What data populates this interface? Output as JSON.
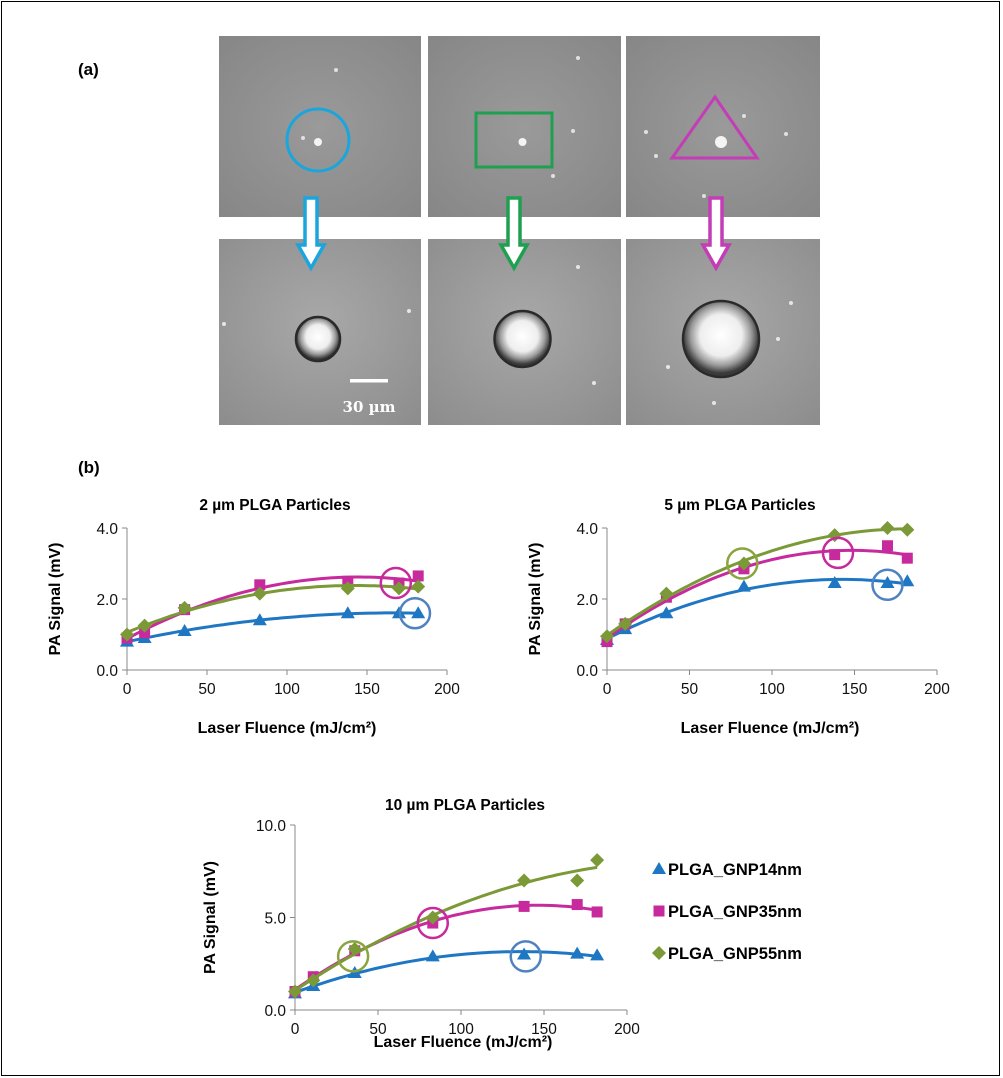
{
  "panel_labels": {
    "a": "(a)",
    "b": "(b)"
  },
  "scale_bar_label": "30 µm",
  "colors": {
    "PLGA_GNP14nm": "#1f77c4",
    "PLGA_GNP35nm": "#c72a9c",
    "PLGA_GNP55nm": "#7b9a37",
    "circle_blue": "#4f82c0",
    "circle_pink": "#c72a9c",
    "circle_green": "#8aa43f",
    "cyan_marker": "#1aa6dd",
    "green_marker": "#1ea050",
    "magenta_marker": "#c43cb6"
  },
  "micrographs": {
    "markers": [
      "circle",
      "rectangle",
      "triangle"
    ],
    "arrows": [
      "down-arrow",
      "down-arrow",
      "down-arrow"
    ]
  },
  "legend": [
    "PLGA_GNP14nm",
    "PLGA_GNP35nm",
    "PLGA_GNP55nm"
  ],
  "chart_data": [
    {
      "type": "scatter",
      "title": "2 µm PLGA Particles",
      "xlabel": "Laser Fluence (mJ/cm²)",
      "ylabel": "PA Signal (mV)",
      "xlim": [
        0,
        200
      ],
      "ylim": [
        0,
        4
      ],
      "xticks": [
        "0",
        "50",
        "100",
        "150",
        "200"
      ],
      "yticks": [
        "0.0",
        "2.0",
        "4.0"
      ],
      "trendline": "polynomial",
      "series": [
        {
          "name": "PLGA_GNP14nm",
          "marker": "triangle",
          "x": [
            0,
            11,
            36,
            83,
            138,
            170,
            182
          ],
          "y": [
            0.8,
            0.9,
            1.1,
            1.4,
            1.6,
            1.6,
            1.6
          ]
        },
        {
          "name": "PLGA_GNP35nm",
          "marker": "square",
          "x": [
            0,
            11,
            36,
            83,
            138,
            170,
            182
          ],
          "y": [
            0.9,
            1.05,
            1.7,
            2.4,
            2.5,
            2.45,
            2.65
          ]
        },
        {
          "name": "PLGA_GNP55nm",
          "marker": "diamond",
          "x": [
            0,
            11,
            36,
            83,
            138,
            170,
            182
          ],
          "y": [
            1.0,
            1.25,
            1.75,
            2.15,
            2.3,
            2.3,
            2.35
          ]
        }
      ],
      "highlights": [
        {
          "series": "PLGA_GNP35nm",
          "x": 168,
          "y": 2.45
        },
        {
          "series": "PLGA_GNP14nm",
          "x": 180,
          "y": 1.6
        }
      ]
    },
    {
      "type": "scatter",
      "title": "5 µm PLGA Particles",
      "xlabel": "Laser Fluence (mJ/cm²)",
      "ylabel": "PA Signal (mV)",
      "xlim": [
        0,
        200
      ],
      "ylim": [
        0,
        4
      ],
      "xticks": [
        "0",
        "50",
        "100",
        "150",
        "200"
      ],
      "yticks": [
        "0.0",
        "2.0",
        "4.0"
      ],
      "trendline": "polynomial",
      "series": [
        {
          "name": "PLGA_GNP14nm",
          "marker": "triangle",
          "x": [
            0,
            11,
            36,
            83,
            138,
            170,
            182
          ],
          "y": [
            0.85,
            1.15,
            1.6,
            2.35,
            2.45,
            2.45,
            2.5
          ]
        },
        {
          "name": "PLGA_GNP35nm",
          "marker": "square",
          "x": [
            0,
            11,
            36,
            83,
            138,
            170,
            182
          ],
          "y": [
            0.8,
            1.3,
            2.05,
            2.85,
            3.25,
            3.5,
            3.15
          ]
        },
        {
          "name": "PLGA_GNP55nm",
          "marker": "diamond",
          "x": [
            0,
            11,
            36,
            83,
            138,
            170,
            182
          ],
          "y": [
            0.95,
            1.3,
            2.15,
            3.0,
            3.8,
            4.0,
            3.95
          ]
        }
      ],
      "highlights": [
        {
          "series": "PLGA_GNP55nm",
          "x": 82,
          "y": 3.0
        },
        {
          "series": "PLGA_GNP35nm",
          "x": 140,
          "y": 3.3
        },
        {
          "series": "PLGA_GNP14nm",
          "x": 170,
          "y": 2.4
        }
      ]
    },
    {
      "type": "scatter",
      "title": "10 µm PLGA Particles",
      "xlabel": "Laser Fluence (mJ/cm²)",
      "ylabel": "PA Signal (mV)",
      "xlim": [
        0,
        200
      ],
      "ylim": [
        0,
        10
      ],
      "xticks": [
        "0",
        "50",
        "100",
        "150",
        "200"
      ],
      "yticks": [
        "0.0",
        "5.0",
        "10.0"
      ],
      "trendline": "polynomial",
      "series": [
        {
          "name": "PLGA_GNP14nm",
          "marker": "triangle",
          "x": [
            0,
            11,
            36,
            83,
            138,
            170,
            182
          ],
          "y": [
            0.9,
            1.3,
            2.0,
            2.9,
            3.0,
            3.05,
            2.95
          ]
        },
        {
          "name": "PLGA_GNP35nm",
          "marker": "square",
          "x": [
            0,
            11,
            36,
            83,
            138,
            170,
            182
          ],
          "y": [
            1.0,
            1.8,
            3.2,
            4.7,
            5.6,
            5.7,
            5.3
          ]
        },
        {
          "name": "PLGA_GNP55nm",
          "marker": "diamond",
          "x": [
            0,
            11,
            36,
            83,
            138,
            170,
            182
          ],
          "y": [
            1.0,
            1.6,
            3.3,
            5.0,
            7.0,
            7.0,
            8.1
          ]
        }
      ],
      "highlights": [
        {
          "series": "PLGA_GNP55nm",
          "x": 35,
          "y": 2.9
        },
        {
          "series": "PLGA_GNP35nm",
          "x": 83,
          "y": 4.7
        },
        {
          "series": "PLGA_GNP14nm",
          "x": 139,
          "y": 2.9
        }
      ]
    }
  ]
}
